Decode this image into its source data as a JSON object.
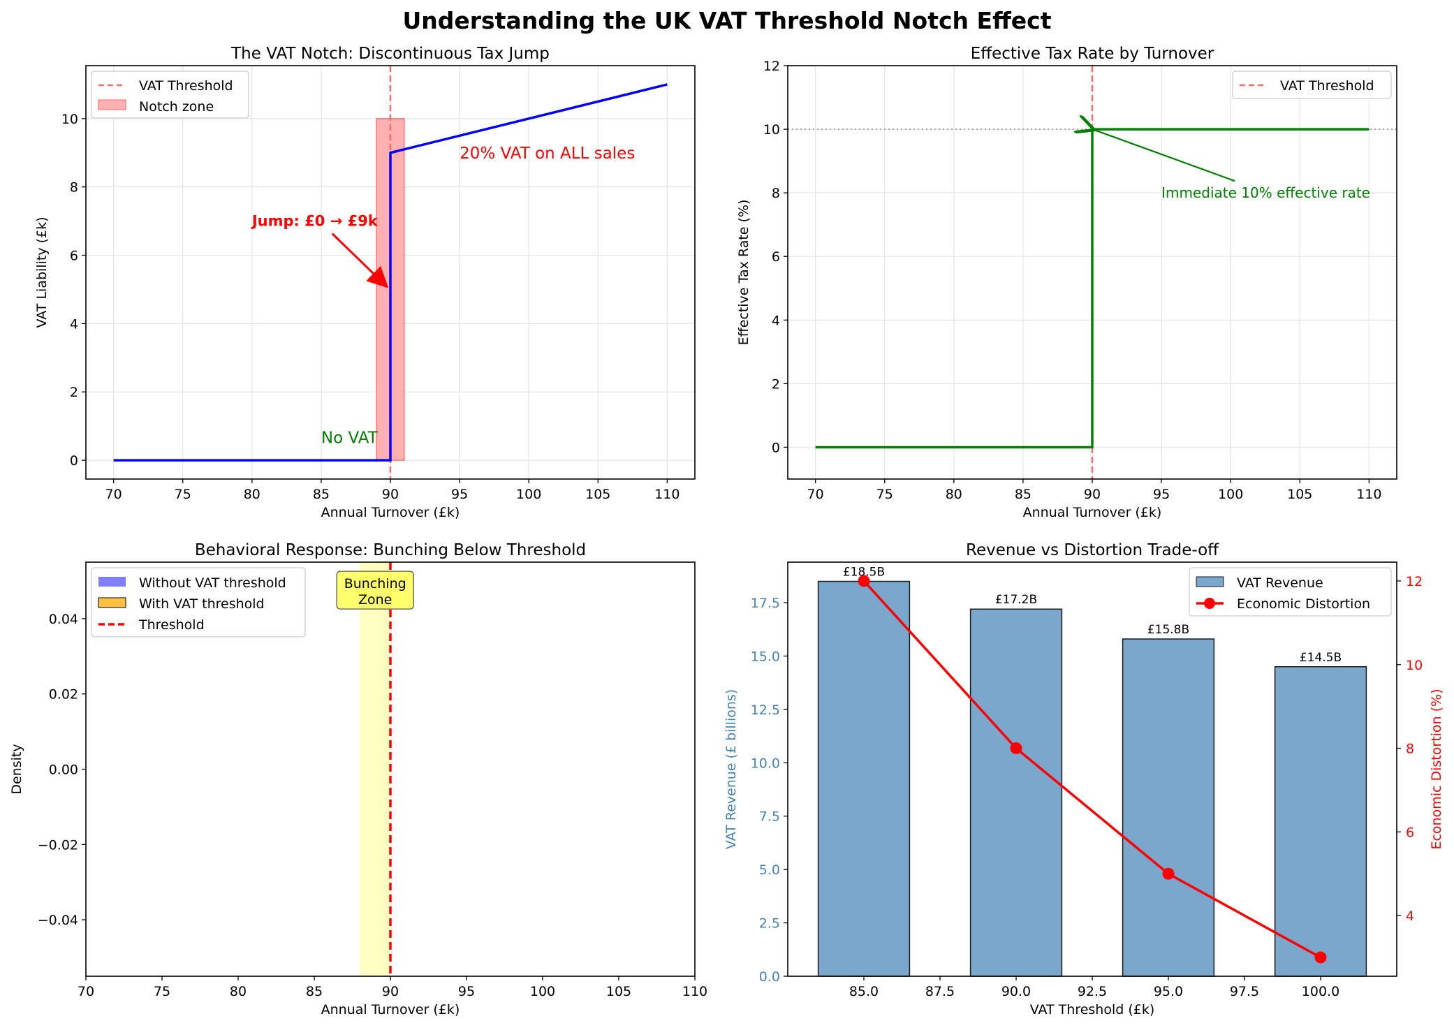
{
  "suptitle": "Understanding the UK VAT Threshold Notch Effect",
  "colors": {
    "blue": "#0000ff",
    "red": "#ff0000",
    "green": "#008000",
    "steel": "#4682b4",
    "bar_fill": "#7ba7cc",
    "notch_fill": "#ffb0b0",
    "bunch_fill": "#ffffc2",
    "grid": "#e6e6e6"
  },
  "chart_data": [
    {
      "type": "line",
      "title": "The VAT Notch: Discontinuous Tax Jump",
      "xlabel": "Annual Turnover (£k)",
      "ylabel": "VAT Liability (£k)",
      "xlim": [
        68,
        112
      ],
      "ylim": [
        -0.55,
        11.55
      ],
      "xticks": [
        70,
        75,
        80,
        85,
        90,
        95,
        100,
        105,
        110
      ],
      "yticks": [
        0,
        2,
        4,
        6,
        8,
        10
      ],
      "grid": true,
      "legend_position": "upper-left",
      "legend": [
        "VAT Threshold",
        "Notch zone"
      ],
      "series": [
        {
          "x": [
            70,
            90,
            90,
            110
          ],
          "y": [
            0,
            0,
            9,
            11
          ]
        }
      ],
      "threshold_x": 90,
      "notch_zone": {
        "x": [
          89,
          91
        ],
        "y": [
          0,
          10
        ]
      },
      "annotations": {
        "jump_text": "Jump: £0 → £9k",
        "jump_text_at": [
          80,
          7
        ],
        "jump_arrow_to": [
          90,
          5
        ],
        "all_sales_text": "20% VAT on ALL sales",
        "all_sales_at": [
          95,
          9
        ],
        "no_vat_text": "No VAT",
        "no_vat_at": [
          85,
          0.5
        ]
      }
    },
    {
      "type": "line",
      "title": "Effective Tax Rate by Turnover",
      "xlabel": "Annual Turnover (£k)",
      "ylabel": "Effective Tax Rate (%)",
      "xlim": [
        68,
        112
      ],
      "ylim": [
        -1,
        12
      ],
      "xticks": [
        70,
        75,
        80,
        85,
        90,
        95,
        100,
        105,
        110
      ],
      "yticks": [
        0,
        2,
        4,
        6,
        8,
        10,
        12
      ],
      "grid": true,
      "legend_position": "upper-right",
      "legend": [
        "VAT Threshold"
      ],
      "series": [
        {
          "x": [
            70,
            90,
            90,
            110
          ],
          "y": [
            0,
            0,
            10,
            10
          ]
        }
      ],
      "threshold_x": 90,
      "reference_y": 10,
      "annotations": {
        "text": "Immediate 10% effective rate",
        "text_at": [
          95,
          8
        ],
        "arrow_to": [
          90,
          10
        ]
      }
    },
    {
      "type": "histogram",
      "title": "Behavioral Response: Bunching Below Threshold",
      "xlabel": "Annual Turnover (£k)",
      "ylabel": "Density",
      "xlim": [
        70,
        110
      ],
      "ylim": [
        -0.055,
        0.055
      ],
      "xticks": [
        70,
        75,
        80,
        85,
        90,
        95,
        100,
        105,
        110
      ],
      "yticks": [
        -0.04,
        -0.02,
        0.0,
        0.02,
        0.04
      ],
      "ytick_labels": [
        "−0.04",
        "−0.02",
        "0.00",
        "0.02",
        "0.04"
      ],
      "grid": false,
      "legend_position": "upper-left",
      "legend": [
        "Without VAT threshold",
        "With VAT threshold",
        "Threshold"
      ],
      "threshold_x": 90,
      "bunching_zone": [
        88,
        90
      ],
      "bunching_label": [
        "Bunching",
        "Zone"
      ],
      "bunching_label_at": [
        89,
        0.047
      ]
    },
    {
      "type": "bar",
      "title": "Revenue vs Distortion Trade-off",
      "xlabel": "VAT Threshold (£k)",
      "ylabel": "VAT Revenue (£ billions)",
      "ylabel_right": "Economic Distortion (%)",
      "xlim": [
        82.5,
        102.5
      ],
      "ylim": [
        0,
        19.4
      ],
      "ylim_right": [
        2.55,
        12.45
      ],
      "xticks": [
        85.0,
        87.5,
        90.0,
        92.5,
        95.0,
        97.5,
        100.0
      ],
      "xtick_labels": [
        "85.0",
        "87.5",
        "90.0",
        "92.5",
        "95.0",
        "97.5",
        "100.0"
      ],
      "yticks": [
        0.0,
        2.5,
        5.0,
        7.5,
        10.0,
        12.5,
        15.0,
        17.5
      ],
      "ytick_labels": [
        "0.0",
        "2.5",
        "5.0",
        "7.5",
        "10.0",
        "12.5",
        "15.0",
        "17.5"
      ],
      "yticks_right": [
        4,
        6,
        8,
        10,
        12
      ],
      "legend_position": "upper-right",
      "legend": [
        "VAT Revenue",
        "Economic Distortion"
      ],
      "categories": [
        85,
        90,
        95,
        100
      ],
      "bar_width": 3,
      "series": [
        {
          "name": "VAT Revenue",
          "values": [
            18.5,
            17.2,
            15.8,
            14.5
          ],
          "labels": [
            "£18.5B",
            "£17.2B",
            "£15.8B",
            "£14.5B"
          ]
        },
        {
          "name": "Economic Distortion",
          "values": [
            12,
            8,
            5,
            3
          ]
        }
      ]
    }
  ]
}
